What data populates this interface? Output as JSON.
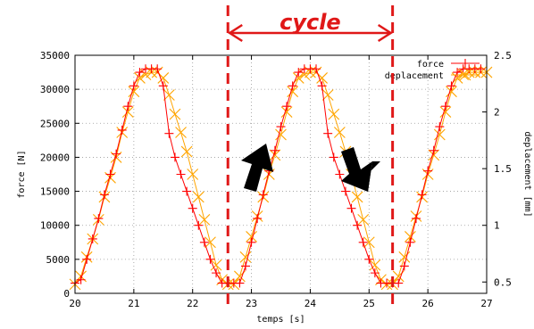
{
  "chart_data": {
    "type": "line",
    "xlabel": "temps [s]",
    "ylabel": "force [N]",
    "y2label": "deplacement [mm]",
    "xlim": [
      20,
      27
    ],
    "ylim": [
      0,
      35000
    ],
    "y2lim": [
      0.4,
      2.5
    ],
    "xticks": [
      "20",
      "21",
      "22",
      "23",
      "24",
      "25",
      "26",
      "27"
    ],
    "yticks": [
      "0",
      "5000",
      "10000",
      "15000",
      "20000",
      "25000",
      "30000",
      "35000"
    ],
    "y2ticks": [
      "0.5",
      "1",
      "1.5",
      "2",
      "2.5"
    ],
    "grid": true,
    "legend_position": "top-right",
    "series": [
      {
        "name": "force",
        "color": "#ff0000",
        "marker": "plus",
        "axis": "left",
        "x": [
          20.0,
          20.1,
          20.2,
          20.3,
          20.4,
          20.5,
          20.6,
          20.7,
          20.8,
          20.9,
          21.0,
          21.1,
          21.2,
          21.3,
          21.4,
          21.5,
          21.6,
          21.7,
          21.8,
          21.9,
          22.0,
          22.1,
          22.2,
          22.3,
          22.4,
          22.5,
          22.6,
          22.7,
          22.8,
          22.9,
          23.0,
          23.1,
          23.2,
          23.3,
          23.4,
          23.5,
          23.6,
          23.7,
          23.8,
          23.9,
          24.0,
          24.1,
          24.2,
          24.3,
          24.4,
          24.5,
          24.6,
          24.7,
          24.8,
          24.9,
          25.0,
          25.1,
          25.2,
          25.3,
          25.4,
          25.5,
          25.6,
          25.7,
          25.8,
          25.9,
          26.0,
          26.1,
          26.2,
          26.3,
          26.4,
          26.5,
          26.6,
          26.7,
          26.8,
          26.9
        ],
        "y": [
          1500,
          2000,
          5000,
          8000,
          11000,
          14500,
          17500,
          20500,
          24000,
          27500,
          30500,
          32500,
          33000,
          33000,
          33000,
          30500,
          23500,
          20000,
          17500,
          15000,
          12500,
          10000,
          7500,
          5000,
          3000,
          1500,
          1500,
          1500,
          1500,
          4000,
          7500,
          11000,
          14500,
          18000,
          21000,
          24500,
          27500,
          30500,
          32500,
          33000,
          33000,
          33000,
          30500,
          23500,
          20000,
          17500,
          15000,
          12500,
          10000,
          7500,
          5000,
          3000,
          1500,
          1500,
          1500,
          1500,
          4000,
          7500,
          11000,
          14500,
          18000,
          21000,
          24500,
          27500,
          30500,
          32500,
          33000,
          33000,
          33000,
          33000
        ]
      },
      {
        "name": "deplacement",
        "color": "#ffa500",
        "marker": "cross",
        "axis": "right",
        "x": [
          20.0,
          20.1,
          20.2,
          20.3,
          20.4,
          20.5,
          20.6,
          20.7,
          20.8,
          20.9,
          21.0,
          21.1,
          21.2,
          21.3,
          21.4,
          21.5,
          21.6,
          21.7,
          21.8,
          21.9,
          22.0,
          22.1,
          22.2,
          22.3,
          22.4,
          22.5,
          22.6,
          22.7,
          22.8,
          22.9,
          23.0,
          23.1,
          23.2,
          23.3,
          23.4,
          23.5,
          23.6,
          23.7,
          23.8,
          23.9,
          24.0,
          24.1,
          24.2,
          24.3,
          24.4,
          24.5,
          24.6,
          24.7,
          24.8,
          24.9,
          25.0,
          25.1,
          25.2,
          25.3,
          25.4,
          25.5,
          25.6,
          25.7,
          25.8,
          25.9,
          26.0,
          26.1,
          26.2,
          26.3,
          26.4,
          26.5,
          26.6,
          26.7,
          26.8,
          26.9,
          27.0
        ],
        "y": [
          0.48,
          0.55,
          0.72,
          0.88,
          1.05,
          1.25,
          1.42,
          1.6,
          1.82,
          2.0,
          2.18,
          2.3,
          2.33,
          2.35,
          2.35,
          2.3,
          2.15,
          1.98,
          1.82,
          1.65,
          1.45,
          1.25,
          1.05,
          0.85,
          0.65,
          0.52,
          0.48,
          0.48,
          0.55,
          0.72,
          0.9,
          1.08,
          1.25,
          1.45,
          1.62,
          1.8,
          2.0,
          2.18,
          2.3,
          2.33,
          2.35,
          2.35,
          2.3,
          2.15,
          1.98,
          1.82,
          1.65,
          1.45,
          1.25,
          1.05,
          0.85,
          0.65,
          0.52,
          0.48,
          0.48,
          0.55,
          0.72,
          0.9,
          1.08,
          1.25,
          1.45,
          1.62,
          1.8,
          2.0,
          2.18,
          2.3,
          2.33,
          2.35,
          2.35,
          2.35,
          2.35
        ]
      }
    ],
    "annotations": {
      "cycle_label": "cycle",
      "cycle_start_x": 22.6,
      "cycle_end_x": 25.4,
      "colors": {
        "cycle": "#e01818",
        "arrows": "#000000"
      }
    }
  }
}
